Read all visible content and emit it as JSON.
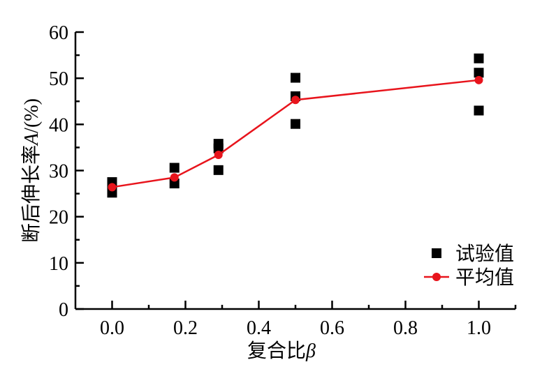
{
  "chart_data": {
    "type": "scatter",
    "title": "",
    "xlabel": "复合比",
    "xlabel_symbol": "β",
    "ylabel": "断后伸长率",
    "ylabel_symbol": "A",
    "ylabel_unit": "/(%)",
    "xlim": [
      -0.1,
      1.1
    ],
    "ylim": [
      0,
      60
    ],
    "xticks": [
      0.0,
      0.2,
      0.4,
      0.6,
      0.8,
      1.0
    ],
    "xtick_labels": [
      "0.0",
      "0.2",
      "0.4",
      "0.6",
      "0.8",
      "1.0"
    ],
    "yticks": [
      0,
      10,
      20,
      30,
      40,
      50,
      60
    ],
    "ytick_labels": [
      "0",
      "10",
      "20",
      "30",
      "40",
      "50",
      "60"
    ],
    "grid": false,
    "legend_position": "bottom-right",
    "series": [
      {
        "name": "试验值",
        "kind": "scatter",
        "marker": "square",
        "color": "#000000",
        "points": [
          [
            0.0,
            25.2
          ],
          [
            0.0,
            26.3
          ],
          [
            0.0,
            27.5
          ],
          [
            0.17,
            27.2
          ],
          [
            0.17,
            30.6
          ],
          [
            0.29,
            30.1
          ],
          [
            0.29,
            34.8
          ],
          [
            0.29,
            35.8
          ],
          [
            0.5,
            40.1
          ],
          [
            0.5,
            46.1
          ],
          [
            0.5,
            50.1
          ],
          [
            1.0,
            43.0
          ],
          [
            1.0,
            51.2
          ],
          [
            1.0,
            54.3
          ]
        ]
      },
      {
        "name": "平均值",
        "kind": "line",
        "marker": "circle",
        "color": "#e8141c",
        "points": [
          [
            0.0,
            26.4
          ],
          [
            0.17,
            28.5
          ],
          [
            0.29,
            33.4
          ],
          [
            0.5,
            45.3
          ],
          [
            1.0,
            49.6
          ]
        ]
      }
    ]
  }
}
